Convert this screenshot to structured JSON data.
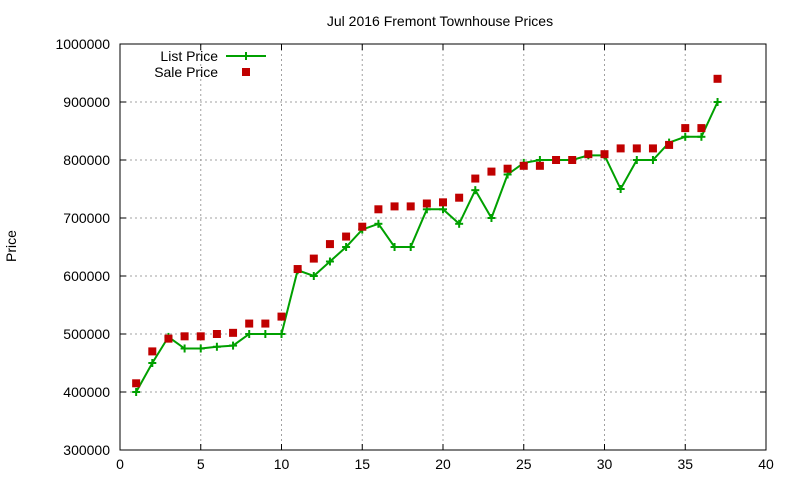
{
  "chart_data": {
    "type": "line",
    "title": "Jul 2016 Fremont Townhouse Prices",
    "xlabel": "",
    "ylabel": "Price",
    "xlim": [
      0,
      40
    ],
    "ylim": [
      300000,
      1000000
    ],
    "x_ticks": [
      0,
      5,
      10,
      15,
      20,
      25,
      30,
      35,
      40
    ],
    "y_ticks": [
      300000,
      400000,
      500000,
      600000,
      700000,
      800000,
      900000,
      1000000
    ],
    "grid": true,
    "legend_position": "top-left",
    "series": [
      {
        "name": "List Price",
        "kind": "line-with-plus-markers",
        "color": "#00a000",
        "x": [
          1,
          2,
          3,
          4,
          5,
          6,
          7,
          8,
          9,
          10,
          11,
          12,
          13,
          14,
          15,
          16,
          17,
          18,
          19,
          20,
          21,
          22,
          23,
          24,
          25,
          26,
          27,
          28,
          29,
          30,
          31,
          32,
          33,
          34,
          35,
          36,
          37
        ],
        "values": [
          400000,
          450000,
          495000,
          475000,
          475000,
          478000,
          480000,
          500000,
          500000,
          500000,
          610000,
          600000,
          625000,
          650000,
          680000,
          690000,
          650000,
          650000,
          715000,
          715000,
          690000,
          748000,
          700000,
          775000,
          795000,
          800000,
          800000,
          800000,
          808000,
          808000,
          750000,
          800000,
          800000,
          830000,
          840000,
          840000,
          900000
        ]
      },
      {
        "name": "Sale Price",
        "kind": "scatter-square",
        "color": "#c00000",
        "x": [
          1,
          2,
          3,
          4,
          5,
          6,
          7,
          8,
          9,
          10,
          11,
          12,
          13,
          14,
          15,
          16,
          17,
          18,
          19,
          20,
          21,
          22,
          23,
          24,
          25,
          26,
          27,
          28,
          29,
          30,
          31,
          32,
          33,
          34,
          35,
          36,
          37
        ],
        "values": [
          415000,
          470000,
          492000,
          496000,
          496000,
          500000,
          502000,
          518000,
          518000,
          530000,
          612000,
          630000,
          655000,
          668000,
          685000,
          715000,
          720000,
          720000,
          725000,
          727000,
          735000,
          768000,
          780000,
          785000,
          790000,
          790000,
          800000,
          800000,
          810000,
          810000,
          820000,
          820000,
          820000,
          826000,
          855000,
          855000,
          940000
        ]
      }
    ]
  }
}
